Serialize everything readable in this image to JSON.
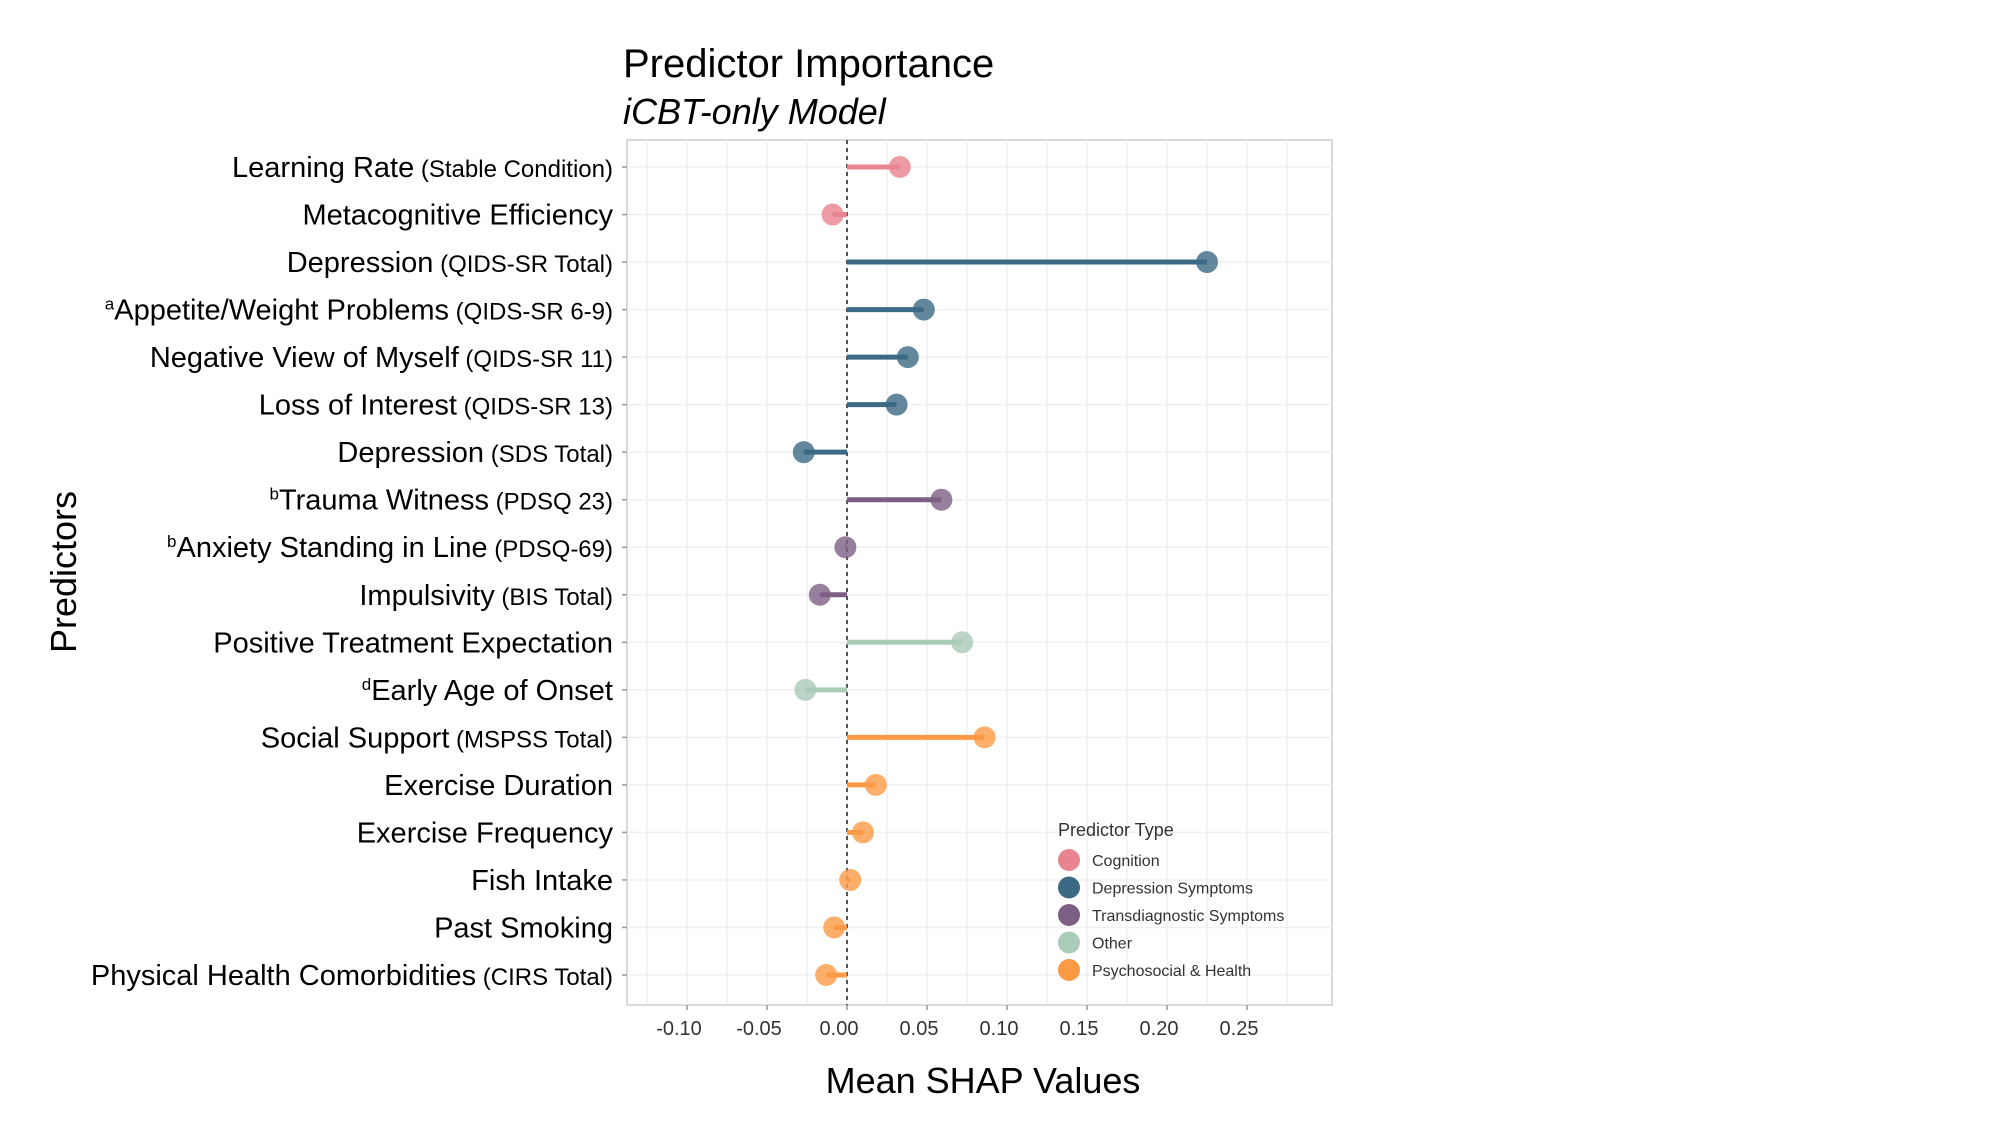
{
  "chart_data": {
    "type": "lollipop",
    "title": "Predictor Importance",
    "subtitle": "iCBT-only Model",
    "xlabel": "Mean SHAP Values",
    "ylabel": "Predictors",
    "xlim": [
      -0.14,
      0.3
    ],
    "xticks": [
      -0.1,
      -0.05,
      0.0,
      0.05,
      0.1,
      0.15,
      0.2,
      0.25
    ],
    "xtick_labels": [
      "-0.10",
      "-0.05",
      "0.00",
      "0.05",
      "0.10",
      "0.15",
      "0.20",
      "0.25"
    ],
    "grid": true,
    "reference_line": 0,
    "legend": {
      "title": "Predictor Type",
      "position": "bottom-right",
      "entries": [
        {
          "name": "Cognition",
          "color": "#e8838f"
        },
        {
          "name": "Depression Symptoms",
          "color": "#3c6a85"
        },
        {
          "name": "Transdiagnostic Symptoms",
          "color": "#7d5f86"
        },
        {
          "name": "Other",
          "color": "#a9cbb8"
        },
        {
          "name": "Psychosocial & Health",
          "color": "#fb9a45"
        }
      ]
    },
    "points": [
      {
        "sup": "",
        "name": "Learning Rate",
        "detail": "(Stable Condition)",
        "value": 0.033,
        "type": "Cognition"
      },
      {
        "sup": "",
        "name": "Metacognitive Efficiency",
        "detail": "",
        "value": -0.009,
        "type": "Cognition"
      },
      {
        "sup": "",
        "name": "Depression",
        "detail": "(QIDS-SR Total)",
        "value": 0.225,
        "type": "Depression Symptoms"
      },
      {
        "sup": "a",
        "name": "Appetite/Weight Problems",
        "detail": "(QIDS-SR 6-9)",
        "value": 0.048,
        "type": "Depression Symptoms"
      },
      {
        "sup": "",
        "name": "Negative View of Myself",
        "detail": "(QIDS-SR 11)",
        "value": 0.038,
        "type": "Depression Symptoms"
      },
      {
        "sup": "",
        "name": "Loss of Interest",
        "detail": "(QIDS-SR 13)",
        "value": 0.031,
        "type": "Depression Symptoms"
      },
      {
        "sup": "",
        "name": "Depression",
        "detail": "(SDS Total)",
        "value": -0.027,
        "type": "Depression Symptoms"
      },
      {
        "sup": "b",
        "name": "Trauma Witness",
        "detail": "(PDSQ 23)",
        "value": 0.059,
        "type": "Transdiagnostic Symptoms"
      },
      {
        "sup": "b",
        "name": "Anxiety Standing in Line",
        "detail": "(PDSQ-69)",
        "value": -0.001,
        "type": "Transdiagnostic Symptoms"
      },
      {
        "sup": "",
        "name": "Impulsivity",
        "detail": "(BIS Total)",
        "value": -0.017,
        "type": "Transdiagnostic Symptoms"
      },
      {
        "sup": "",
        "name": "Positive Treatment Expectation",
        "detail": "",
        "value": 0.072,
        "type": "Other"
      },
      {
        "sup": "d",
        "name": "Early Age of Onset",
        "detail": "",
        "value": -0.026,
        "type": "Other"
      },
      {
        "sup": "",
        "name": "Social Support",
        "detail": "(MSPSS Total)",
        "value": 0.086,
        "type": "Psychosocial & Health"
      },
      {
        "sup": "",
        "name": "Exercise Duration",
        "detail": "",
        "value": 0.018,
        "type": "Psychosocial & Health"
      },
      {
        "sup": "",
        "name": "Exercise Frequency",
        "detail": "",
        "value": 0.01,
        "type": "Psychosocial & Health"
      },
      {
        "sup": "",
        "name": "Fish Intake",
        "detail": "",
        "value": 0.002,
        "type": "Psychosocial & Health"
      },
      {
        "sup": "",
        "name": "Past Smoking",
        "detail": "",
        "value": -0.008,
        "type": "Psychosocial & Health"
      },
      {
        "sup": "",
        "name": "Physical Health Comorbidities",
        "detail": "(CIRS Total)",
        "value": -0.013,
        "type": "Psychosocial & Health"
      }
    ]
  }
}
